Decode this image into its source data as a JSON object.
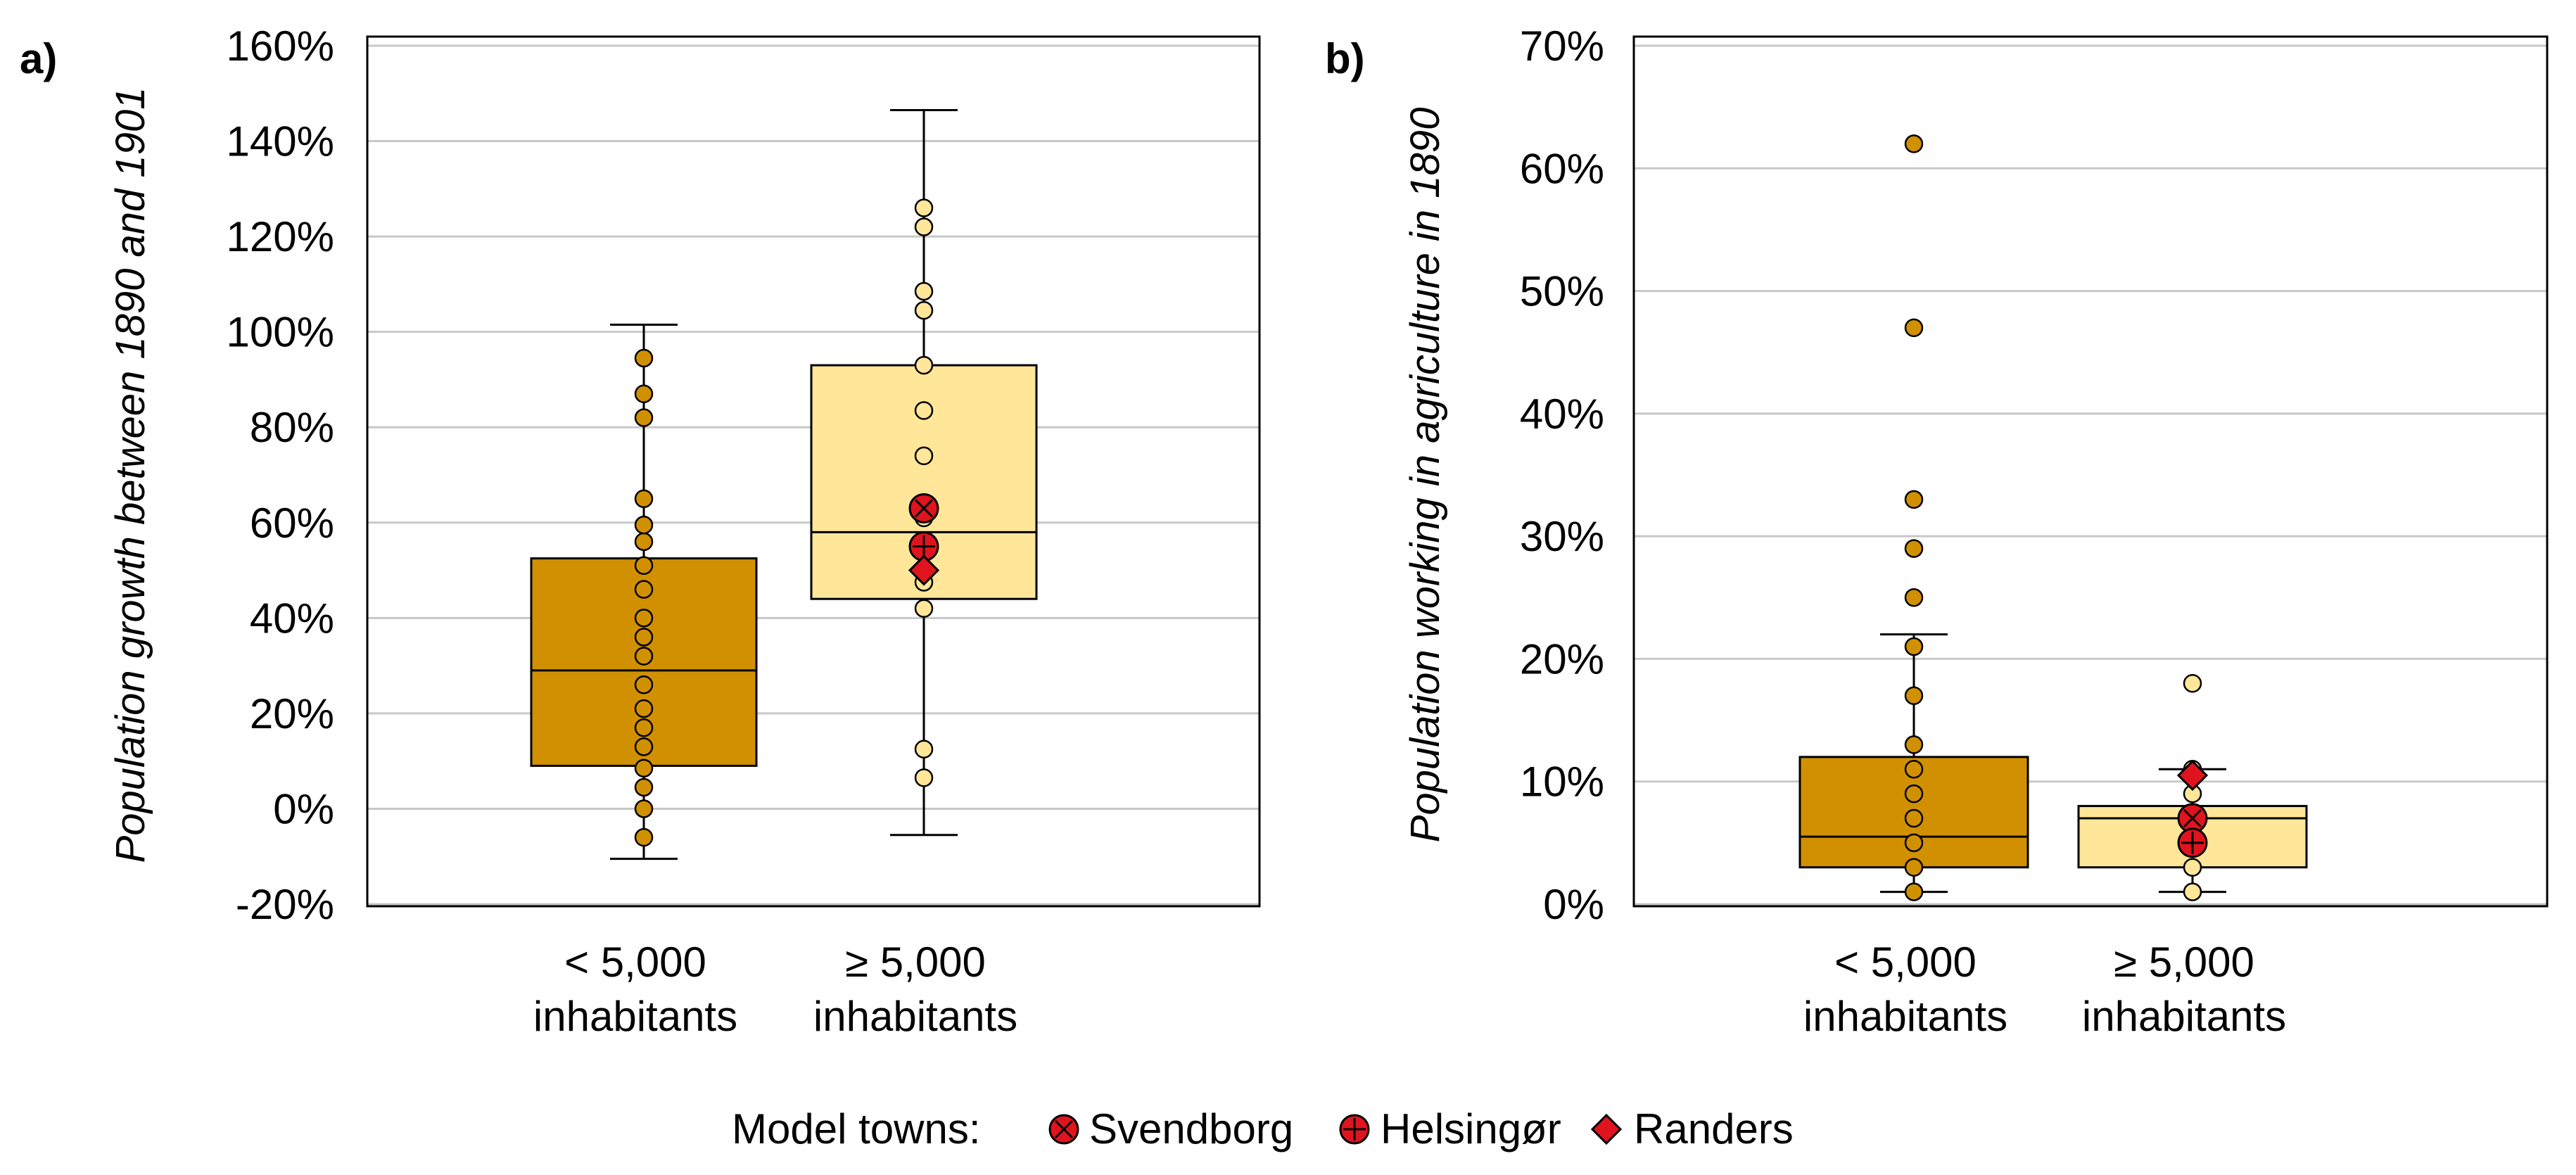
{
  "chart_data": [
    {
      "panel": "a)",
      "type": "boxplot",
      "ylabel": "Population  growth between 1890 and 1901",
      "ylim": [
        -20,
        160
      ],
      "yticks": [
        -20,
        0,
        20,
        40,
        60,
        80,
        100,
        120,
        140,
        160
      ],
      "tick_suffix": "%",
      "grid": true,
      "categories": [
        {
          "label_line1": "< 5,000",
          "label_line2": "inhabitants",
          "color": "#D09000",
          "whisker_low": -10.5,
          "q1": 9,
          "median": 29,
          "q3": 52.5,
          "whisker_high": 101.5,
          "points": [
            -6,
            0,
            4.5,
            8.5,
            13,
            17,
            21,
            26,
            32,
            36,
            40,
            46,
            51,
            56,
            59.5,
            65,
            82,
            87,
            94.5
          ]
        },
        {
          "label_line1": "≥ 5,000",
          "label_line2": "inhabitants",
          "color": "#FFE699",
          "whisker_low": -5.5,
          "q1": 44,
          "median": 58,
          "q3": 93,
          "whisker_high": 146.5,
          "points": [
            6.5,
            12.5,
            42,
            47.5,
            61,
            74,
            83.5,
            93,
            104.5,
            108.5,
            122,
            126
          ],
          "model_towns": [
            {
              "town": "Svendborg",
              "value": 63
            },
            {
              "town": "Helsingør",
              "value": 55
            },
            {
              "town": "Randers",
              "value": 50
            }
          ]
        }
      ]
    },
    {
      "panel": "b)",
      "type": "boxplot",
      "ylabel": "Population  working  in agriculture in 1890",
      "ylim": [
        0,
        70
      ],
      "yticks": [
        0,
        10,
        20,
        30,
        40,
        50,
        60,
        70
      ],
      "tick_suffix": "%",
      "grid": true,
      "categories": [
        {
          "label_line1": "< 5,000",
          "label_line2": "inhabitants",
          "color": "#D09000",
          "whisker_low": 1,
          "q1": 3,
          "median": 5.5,
          "q3": 12,
          "whisker_high": 22,
          "points": [
            1,
            3,
            5,
            7,
            9,
            11,
            13,
            17,
            21,
            25,
            29,
            33,
            47,
            62
          ]
        },
        {
          "label_line1": "≥ 5,000",
          "label_line2": "inhabitants",
          "color": "#FFE699",
          "whisker_low": 1,
          "q1": 3,
          "median": 7,
          "q3": 8,
          "whisker_high": 11,
          "points": [
            1,
            3,
            9,
            11,
            18
          ],
          "model_towns": [
            {
              "town": "Svendborg",
              "value": 7
            },
            {
              "town": "Helsingør",
              "value": 5
            },
            {
              "town": "Randers",
              "value": 10.5
            }
          ]
        }
      ]
    }
  ],
  "legend": {
    "title": "Model towns:",
    "items": [
      {
        "name": "Svendborg",
        "marker": "circle-x"
      },
      {
        "name": "Helsingør",
        "marker": "circle-plus"
      },
      {
        "name": "Randers",
        "marker": "diamond"
      }
    ]
  },
  "colors": {
    "marker_red": "#E0141E",
    "grid": "#C8C8C8",
    "outline": "#000000"
  }
}
